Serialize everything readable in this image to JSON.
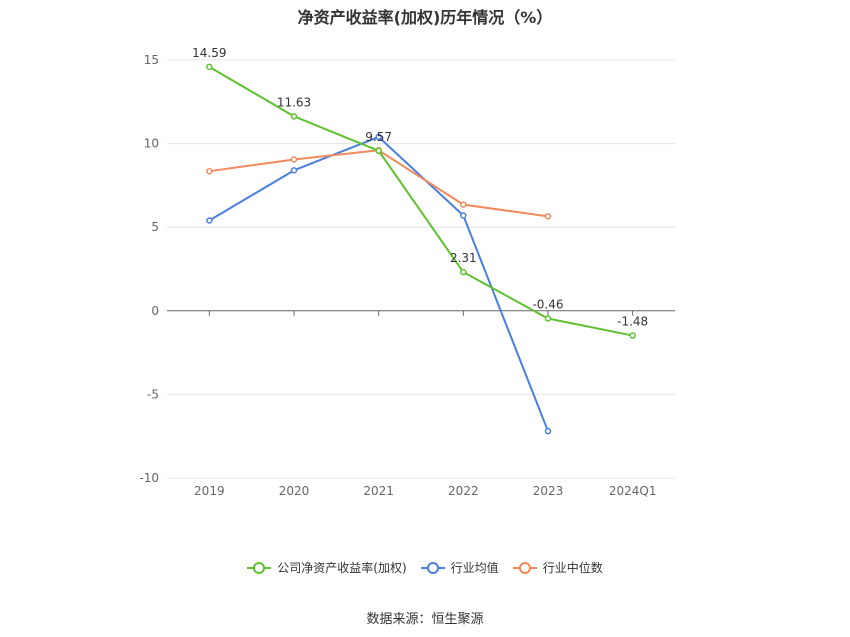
{
  "chart_data": {
    "type": "line",
    "title": "净资产收益率(加权)历年情况（%）",
    "categories": [
      "2019",
      "2020",
      "2021",
      "2022",
      "2023",
      "2024Q1"
    ],
    "ylim": [
      -10,
      15
    ],
    "yticks": [
      15,
      10,
      5,
      0,
      -5,
      -10
    ],
    "grid": true,
    "legend_position": "bottom",
    "series": [
      {
        "name": "公司净资产收益率(加权)",
        "color": "#5ec12f",
        "values": [
          14.59,
          11.63,
          9.57,
          2.31,
          -0.46,
          -1.48
        ],
        "labels": [
          "14.59",
          "11.63",
          "9.57",
          "2.31",
          "-0.46",
          "-1.48"
        ]
      },
      {
        "name": "行业均值",
        "color": "#4a7fe0",
        "values": [
          5.4,
          8.4,
          10.4,
          5.7,
          -7.2,
          null
        ]
      },
      {
        "name": "行业中位数",
        "color": "#f08a5d",
        "values": [
          8.35,
          9.05,
          9.6,
          6.35,
          5.65,
          null
        ]
      }
    ]
  },
  "source": "数据来源：恒生聚源"
}
